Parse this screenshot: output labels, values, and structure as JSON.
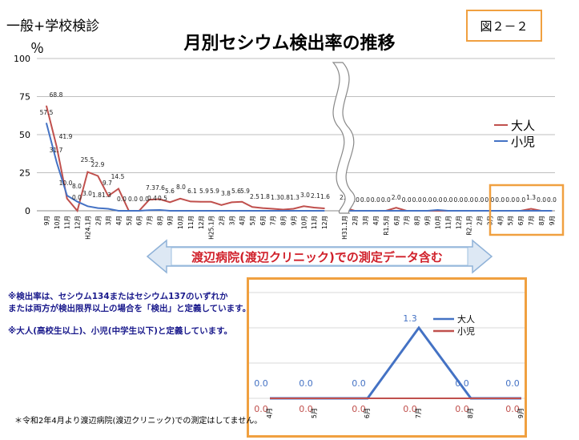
{
  "header": {
    "subtitle": "一般+学校検診",
    "unit": "％",
    "title": "月別セシウム検出率の推移",
    "figure_label": "図２－２"
  },
  "banner": {
    "text": "渡辺病院(渡辺クリニック)での測定データ含む"
  },
  "notes": {
    "line1": "※検出率は、セシウム134またはセシウム137のいずれか",
    "line2": "または両方が検出限界以上の場合を「検出」と定義しています。",
    "line3": "※大人(高校生以上)、小児(中学生以下)と定義しています。"
  },
  "footnote": "＊令和2年4月より渡辺病院(渡辺クリニック)での測定はしてません。",
  "colors": {
    "adult": "#4472c4",
    "child": "#c0504d",
    "grid": "#bfbfbf",
    "highlight": "#f0a040"
  },
  "chart_data": [
    {
      "type": "line",
      "title": "月別セシウム検出率の推移",
      "ylabel": "％",
      "ylim": [
        0,
        100
      ],
      "yticks": [
        0,
        25,
        50,
        75,
        100
      ],
      "legend": "right",
      "series_labels": {
        "child": "大人",
        "adult": "小児"
      },
      "segments": [
        {
          "categories": [
            "9月",
            "10月",
            "11月",
            "12月",
            "H24.1月",
            "2月",
            "3月",
            "4月",
            "5月",
            "6月",
            "7月",
            "8月",
            "9月",
            "10月",
            "11月",
            "12月",
            "H25.1月",
            "2月",
            "3月",
            "4月",
            "5月",
            "6月",
            "7月",
            "8月",
            "9月",
            "10月",
            "11月",
            "12月"
          ],
          "series": [
            {
              "name": "大人",
              "key": "child",
              "values": [
                68.8,
                41.9,
                8.0,
                0.0,
                25.5,
                22.9,
                9.7,
                14.5,
                0.0,
                0.0,
                7.3,
                7.6,
                5.6,
                8.0,
                6.1,
                5.9,
                5.9,
                3.8,
                5.6,
                5.9,
                2.5,
                1.8,
                1.3,
                0.8,
                1.3,
                3.0,
                2.1,
                1.6
              ]
            },
            {
              "name": "小児",
              "key": "adult",
              "values": [
                57.5,
                31.7,
                10.0,
                6.0,
                3.0,
                1.8,
                1.3,
                0.0,
                0.0,
                0.0,
                0.4,
                0.5,
                0.0,
                0.0,
                0.0,
                0.0,
                0.0,
                0.0,
                0.0,
                0.0,
                0.0,
                0.0,
                0.0,
                0.0,
                0.0,
                0.0,
                0.0,
                0.0
              ]
            }
          ],
          "visible_labels": [
            "57.5",
            "68.8",
            "31.7",
            "41.9",
            "10.0",
            "8.0",
            "0.0",
            "3.0",
            "25.5",
            "22.9",
            "1.8",
            "1.3",
            "9.7",
            "14.5",
            "0.0",
            "0.0",
            "0.0",
            "7.3",
            "7.6",
            "0.4",
            "0.5",
            "5.6",
            "8.0",
            "6.1",
            "5.9",
            "5.9",
            "3.8",
            "5.6",
            "5.9",
            "2.5",
            "1.8",
            "1.3",
            "0.8",
            "1.3",
            "3.0",
            "2.1",
            "1.6"
          ]
        },
        {
          "categories": [
            "H31.1月",
            "2月",
            "3月",
            "4月",
            "R1.5月",
            "6月",
            "7月",
            "8月",
            "9月",
            "10月",
            "11月",
            "12月",
            "R2.1月",
            "2月",
            "3月",
            "4月",
            "5月",
            "6月",
            "7月",
            "8月",
            "9月"
          ],
          "series": [
            {
              "name": "大人",
              "key": "child",
              "values": [
                2.0,
                0.0,
                0.0,
                0.0,
                0.0,
                2.0,
                0.0,
                0.0,
                0.0,
                0.0,
                0.0,
                0.0,
                0.0,
                0.0,
                0.0,
                0.0,
                0.0,
                0.0,
                1.3,
                0.0,
                0.0
              ]
            },
            {
              "name": "小児",
              "key": "adult",
              "values": [
                0.0,
                0.0,
                0.0,
                0.0,
                0.0,
                0.0,
                0.0,
                0.0,
                0.0,
                0.5,
                0.0,
                0.0,
                0.0,
                0.0,
                0.0,
                0.0,
                0.0,
                0.0,
                0.0,
                0.0,
                0.0
              ]
            }
          ],
          "visible_labels": [
            "1.6",
            "0.0",
            "2.0",
            "0.0",
            "0.5",
            "1.3"
          ]
        }
      ]
    },
    {
      "type": "line",
      "categories": [
        "4月",
        "5月",
        "6月",
        "7月",
        "8月",
        "9月"
      ],
      "series": [
        {
          "name": "大人",
          "key": "adult",
          "values": [
            0.0,
            0.0,
            0.0,
            1.3,
            0.0,
            0.0
          ]
        },
        {
          "name": "小児",
          "key": "child",
          "values": [
            0.0,
            0.0,
            0.0,
            0.0,
            0.0,
            0.0
          ]
        }
      ],
      "legend": "top-right"
    }
  ]
}
